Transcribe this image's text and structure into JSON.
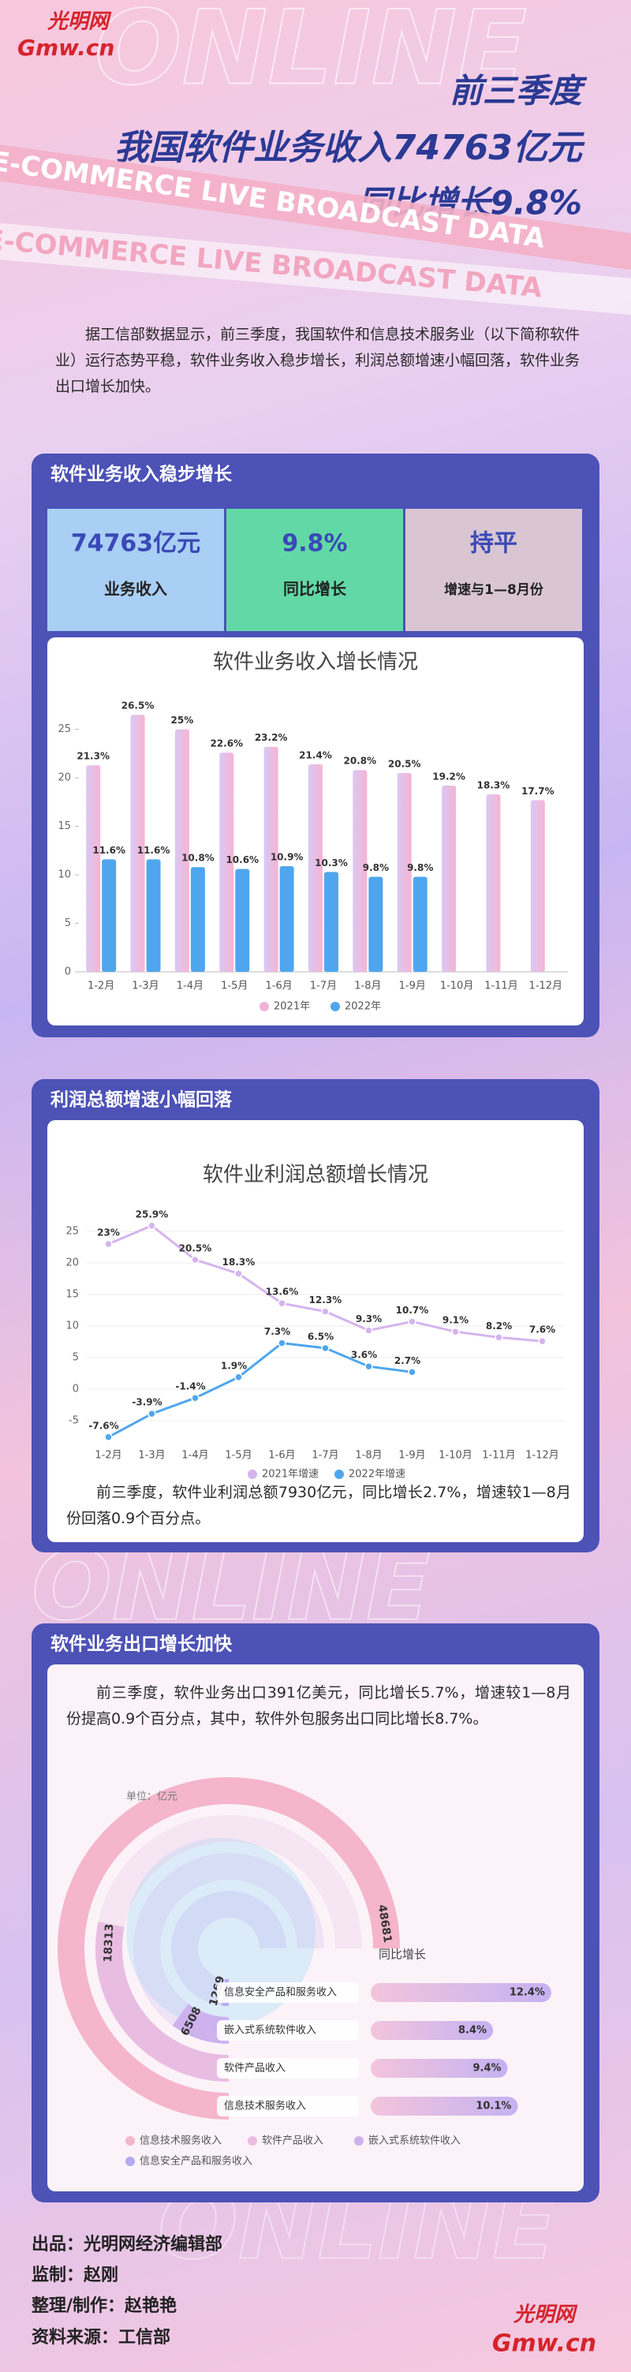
{
  "header": {
    "logo": "光明网",
    "logo_sub": "Gmw.cn",
    "watermark": "ONLINE",
    "banner": "E-COMMERCE LIVE BROADCAST DATA",
    "title_lines": [
      "前三季度",
      "我国软件业务收入74763亿元",
      "同比增长9.8%"
    ]
  },
  "intro": "据工信部数据显示，前三季度，我国软件和信息技术服务业（以下简称软件业）运行态势平稳，软件业务收入稳步增长，利润总额增速小幅回落，软件业务出口增长加快。",
  "sections": [
    {
      "title": "软件业务收入稳步增长",
      "stats": [
        {
          "value": "74763亿元",
          "label": "业务收入"
        },
        {
          "value": "9.8%",
          "label": "同比增长"
        },
        {
          "value": "持平",
          "label": "增速与1—8月份"
        }
      ]
    },
    {
      "title": "利润总额增速小幅回落",
      "text": "前三季度，软件业利润总额7930亿元，同比增长2.7%，增速较1—8月份回落0.9个百分点。"
    },
    {
      "title": "软件业务出口增长加快",
      "text": "前三季度，软件业务出口391亿美元，同比增长5.7%，增速较1—8月份提高0.9个百分点，其中，软件外包服务出口同比增长8.7%。",
      "unit": "单位：亿元"
    }
  ],
  "footer": [
    "出品：光明网经济编辑部",
    "监制：赵刚",
    "整理/制作：赵艳艳",
    "资料来源：工信部"
  ],
  "chart_data": [
    {
      "type": "bar",
      "title": "软件业务收入增长情况",
      "categories": [
        "1-2月",
        "1-3月",
        "1-4月",
        "1-5月",
        "1-6月",
        "1-7月",
        "1-8月",
        "1-9月",
        "1-10月",
        "1-11月",
        "1-12月"
      ],
      "series": [
        {
          "name": "2021年",
          "color": "#f0b2d6",
          "values": [
            21.3,
            26.5,
            25,
            22.6,
            23.2,
            21.4,
            20.8,
            20.5,
            19.2,
            18.3,
            17.7
          ],
          "value_labels": [
            "21.3%",
            "26.5%",
            "25%",
            "22.6%",
            "23.2%",
            "21.4%",
            "20.8%",
            "20.5%",
            "19.2%",
            "18.3%",
            "17.7%"
          ]
        },
        {
          "name": "2022年",
          "color": "#4fa6ee",
          "values": [
            11.6,
            11.6,
            10.8,
            10.6,
            10.9,
            10.3,
            9.8,
            9.8,
            null,
            null,
            null
          ],
          "value_labels": [
            "11.6%",
            "11.6%",
            "10.8%",
            "10.6%",
            "10.9%",
            "10.3%",
            "9.8%",
            "9.8%",
            null,
            null,
            null
          ]
        }
      ],
      "ylim": [
        0,
        27
      ],
      "yticks": [
        0,
        5,
        10,
        15,
        20,
        25
      ],
      "grid": false,
      "legend": "bottom"
    },
    {
      "type": "line",
      "title": "软件业利润总额增长情况",
      "categories": [
        "1-2月",
        "1-3月",
        "1-4月",
        "1-5月",
        "1-6月",
        "1-7月",
        "1-8月",
        "1-9月",
        "1-10月",
        "1-11月",
        "1-12月"
      ],
      "series": [
        {
          "name": "2021年增速",
          "color": "#d4b4ee",
          "values": [
            23,
            25.9,
            20.5,
            18.3,
            13.6,
            12.3,
            9.3,
            10.7,
            9.1,
            8.2,
            7.6
          ],
          "value_labels": [
            "23%",
            "25.9%",
            "20.5%",
            "18.3%",
            "13.6%",
            "12.3%",
            "9.3%",
            "10.7%",
            "9.1%",
            "8.2%",
            "7.6%"
          ]
        },
        {
          "name": "2022年增速",
          "color": "#4fa6ee",
          "values": [
            -7.6,
            -3.9,
            -1.4,
            1.9,
            7.3,
            6.5,
            3.6,
            2.7,
            null,
            null,
            null
          ],
          "value_labels": [
            "-7.6%",
            "-3.9%",
            "-1.4%",
            "1.9%",
            "7.3%",
            "6.5%",
            "3.6%",
            "2.7%",
            null,
            null,
            null
          ]
        }
      ],
      "ylim": [
        -8,
        28
      ],
      "yticks": [
        -5,
        0,
        5,
        10,
        15,
        20,
        25
      ],
      "grid": true,
      "legend": "bottom"
    },
    {
      "type": "radial_bar",
      "categories": [
        "信息技术服务收入",
        "软件产品收入",
        "嵌入式系统软件收入",
        "信息安全产品和服务收入"
      ],
      "values": [
        48681,
        18313,
        6508,
        1269
      ],
      "colors": [
        "#f5b5cb",
        "#e9bde2",
        "#cdb2ee",
        "#b3aaf0"
      ],
      "legend": "bottom"
    },
    {
      "type": "hbar",
      "title": "同比增长",
      "categories": [
        "信息安全产品和服务收入",
        "嵌入式系统软件收入",
        "软件产品收入",
        "信息技术服务收入"
      ],
      "values": [
        12.4,
        8.4,
        9.4,
        10.1
      ],
      "value_labels": [
        "12.4%",
        "8.4%",
        "9.4%",
        "10.1%"
      ],
      "xlim": [
        0,
        13
      ],
      "color": "#c9b4f0"
    }
  ]
}
